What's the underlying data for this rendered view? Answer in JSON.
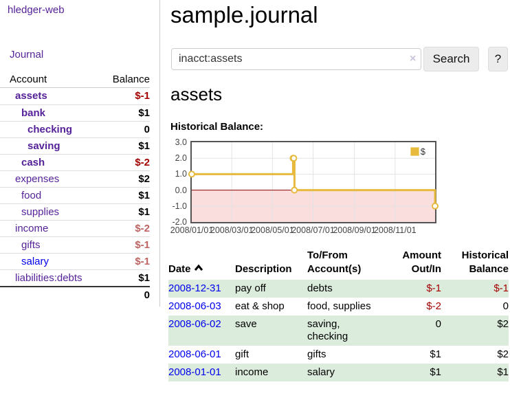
{
  "colors": {
    "link_purple": "#552299",
    "link_blue": "#0000ee",
    "neg_strong": "#a40000",
    "neg_soft": "#bf6363",
    "row_green": "#dcecdc",
    "chart_line": "#e7b93c",
    "chart_negative_fill": "#fadddd",
    "chart_zero_line": "#8b0000"
  },
  "sidebar": {
    "app_link": "hledger-web",
    "nav": {
      "journal": "Journal"
    },
    "table": {
      "headers": [
        "Account",
        "Balance"
      ],
      "rows": [
        {
          "account": "assets",
          "level": 1,
          "bold": true,
          "link": "purple",
          "balance": "$-1",
          "balance_class": "neg-strong"
        },
        {
          "account": "bank",
          "level": 2,
          "bold": true,
          "link": "purple",
          "balance": "$1",
          "balance_class": "pos"
        },
        {
          "account": "checking",
          "level": 3,
          "bold": true,
          "link": "purple",
          "balance": "0",
          "balance_class": "pos"
        },
        {
          "account": "saving",
          "level": 3,
          "bold": true,
          "link": "purple",
          "balance": "$1",
          "balance_class": "pos"
        },
        {
          "account": "cash",
          "level": 2,
          "bold": true,
          "link": "purple",
          "balance": "$-2",
          "balance_class": "neg-strong"
        },
        {
          "account": "expenses",
          "level": 1,
          "bold": false,
          "link": "purple",
          "balance": "$2",
          "balance_class": "pos"
        },
        {
          "account": "food",
          "level": 2,
          "bold": false,
          "link": "purple",
          "balance": "$1",
          "balance_class": "pos"
        },
        {
          "account": "supplies",
          "level": 2,
          "bold": false,
          "link": "purple",
          "balance": "$1",
          "balance_class": "pos"
        },
        {
          "account": "income",
          "level": 1,
          "bold": false,
          "link": "purple",
          "balance": "$-2",
          "balance_class": "neg-soft"
        },
        {
          "account": "gifts",
          "level": 2,
          "bold": false,
          "link": "purple",
          "balance": "$-1",
          "balance_class": "neg-soft"
        },
        {
          "account": "salary",
          "level": 2,
          "bold": false,
          "link": "blue",
          "balance": "$-1",
          "balance_class": "neg-soft"
        },
        {
          "account": "liabilities:debts",
          "level": 1,
          "bold": false,
          "link": "purple",
          "balance": "$1",
          "balance_class": "pos"
        }
      ],
      "total": "0"
    }
  },
  "header": {
    "title": "sample.journal"
  },
  "search": {
    "value": "inacct:assets",
    "clear_icon": "×",
    "button": "Search",
    "help_button": "?"
  },
  "main": {
    "account_title": "assets",
    "chart_label": "Historical Balance:"
  },
  "chart_data": {
    "type": "line",
    "step": true,
    "title": "Historical Balance:",
    "x_range": [
      "2008-01-01",
      "2008-12-31"
    ],
    "ylim": [
      -2,
      3
    ],
    "y_tick_values": [
      3,
      2,
      1,
      0,
      -1,
      -2
    ],
    "y_tick_labels": [
      "3.0",
      "2.0",
      "1.0",
      "0.0",
      "-1.0",
      "-2.0"
    ],
    "x_ticks": [
      "2008/01/01",
      "2008/03/01",
      "2008/05/01",
      "2008/07/01",
      "2008/09/01",
      "2008/11/01"
    ],
    "legend_position": "top-right",
    "grid": true,
    "series": [
      {
        "name": "$",
        "color": "#e7b93c",
        "points": [
          [
            "2008-01-01",
            1
          ],
          [
            "2008-06-01",
            2
          ],
          [
            "2008-06-02",
            2
          ],
          [
            "2008-06-03",
            0
          ],
          [
            "2008-12-31",
            -1
          ]
        ]
      }
    ]
  },
  "register": {
    "headers": [
      {
        "label": "Date",
        "sorted_asc": true,
        "align": "left"
      },
      {
        "label": "Description",
        "align": "left"
      },
      {
        "label": "To/From Account(s)",
        "align": "left"
      },
      {
        "label": "Amount Out/In",
        "align": "right"
      },
      {
        "label": "Historical Balance",
        "align": "right"
      }
    ],
    "rows": [
      {
        "date": "2008-12-31",
        "description": "pay off",
        "accounts": "debts",
        "amount": "$-1",
        "amount_neg": true,
        "balance": "$-1",
        "balance_neg": true
      },
      {
        "date": "2008-06-03",
        "description": "eat & shop",
        "accounts": "food, supplies",
        "amount": "$-2",
        "amount_neg": true,
        "balance": "0",
        "balance_neg": false
      },
      {
        "date": "2008-06-02",
        "description": "save",
        "accounts": "saving, checking",
        "amount": "0",
        "amount_neg": false,
        "balance": "$2",
        "balance_neg": false
      },
      {
        "date": "2008-06-01",
        "description": "gift",
        "accounts": "gifts",
        "amount": "$1",
        "amount_neg": false,
        "balance": "$2",
        "balance_neg": false
      },
      {
        "date": "2008-01-01",
        "description": "income",
        "accounts": "salary",
        "amount": "$1",
        "amount_neg": false,
        "balance": "$1",
        "balance_neg": false
      }
    ]
  }
}
